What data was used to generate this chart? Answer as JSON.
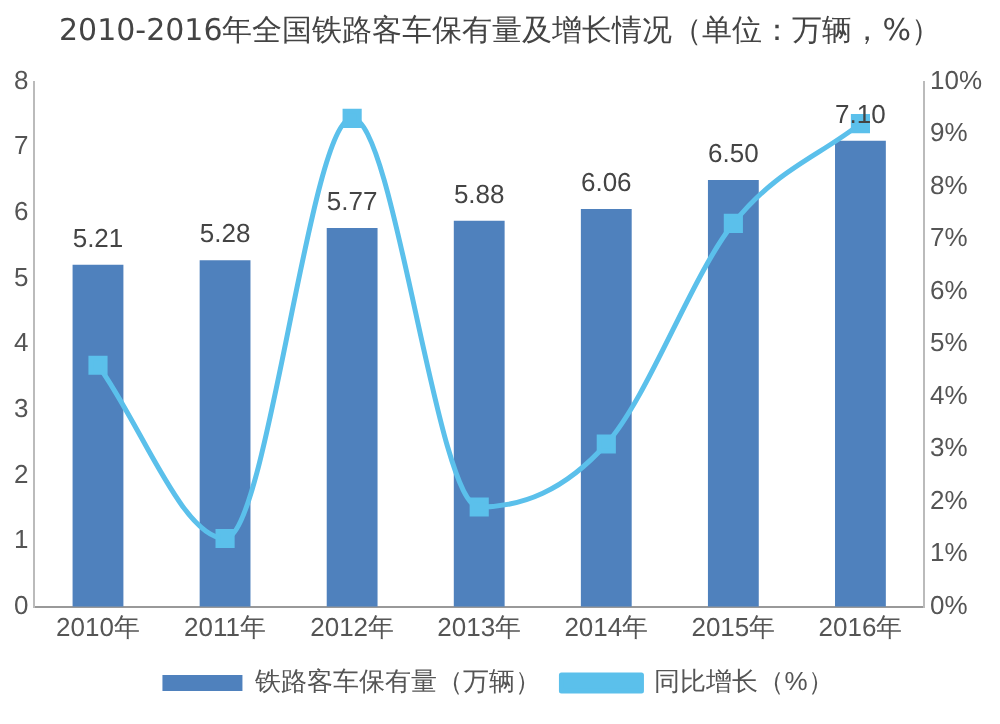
{
  "chart_data": {
    "type": "bar",
    "title": "2010-2016年全国铁路客车保有量及增长情况（单位：万辆，%）",
    "categories": [
      "2010年",
      "2011年",
      "2012年",
      "2013年",
      "2014年",
      "2015年",
      "2016年"
    ],
    "series": [
      {
        "name": "铁路客车保有量（万辆）",
        "color": "#4f81bd",
        "values": [
          5.21,
          5.28,
          5.77,
          5.88,
          6.06,
          6.5,
          7.1
        ],
        "value_labels": [
          "5.21",
          "5.28",
          "5.77",
          "5.88",
          "6.06",
          "6.50",
          "7.10"
        ]
      },
      {
        "name": "同比增长（%）",
        "type": "line",
        "axis": "y2",
        "color": "#5bc0eb",
        "marker": "square",
        "values": [
          4.6,
          1.3,
          9.3,
          1.9,
          3.1,
          7.3,
          9.2
        ]
      }
    ],
    "ylim": [
      0,
      8
    ],
    "yticks": [
      0,
      1,
      2,
      3,
      4,
      5,
      6,
      7,
      8
    ],
    "y2lim": [
      0,
      10
    ],
    "y2ticks": [
      {
        "value": 0,
        "label": "0%"
      },
      {
        "value": 1,
        "label": "1%"
      },
      {
        "value": 2,
        "label": "2%"
      },
      {
        "value": 3,
        "label": "3%"
      },
      {
        "value": 4,
        "label": "4%"
      },
      {
        "value": 5,
        "label": "5%"
      },
      {
        "value": 6,
        "label": "6%"
      },
      {
        "value": 7,
        "label": "7%"
      },
      {
        "value": 8,
        "label": "8%"
      },
      {
        "value": 9,
        "label": "9%"
      },
      {
        "value": 10,
        "label": "10%"
      }
    ],
    "grid": false,
    "legend": "bottom"
  }
}
